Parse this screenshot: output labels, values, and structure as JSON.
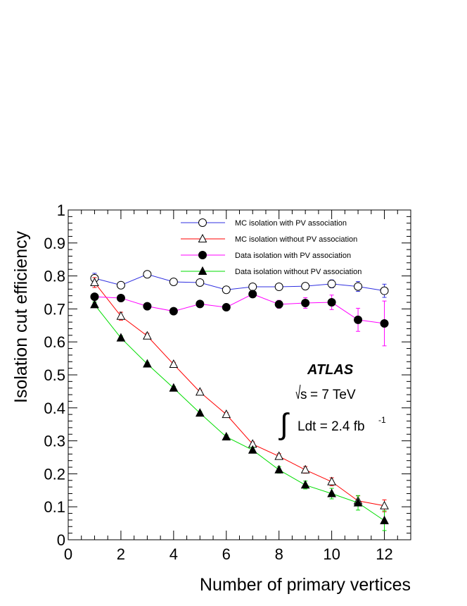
{
  "chart_data": {
    "type": "scatter",
    "xlabel": "Number of primary vertices",
    "ylabel": "Isolation cut efficiency",
    "xlim": [
      0,
      13
    ],
    "ylim": [
      0,
      1
    ],
    "xticks": [
      "0",
      "2",
      "4",
      "6",
      "8",
      "10",
      "12"
    ],
    "yticks": [
      "0",
      "0.1",
      "0.2",
      "0.3",
      "0.4",
      "0.5",
      "0.6",
      "0.7",
      "0.8",
      "0.9",
      "1"
    ],
    "legend_position": "top-right",
    "x": [
      1,
      2,
      3,
      4,
      5,
      6,
      7,
      8,
      9,
      10,
      11,
      12
    ],
    "series": [
      {
        "name": "MC isolation with PV association",
        "color": "#3030e0",
        "marker": "open-circle",
        "values": [
          0.793,
          0.772,
          0.805,
          0.782,
          0.78,
          0.758,
          0.767,
          0.767,
          0.769,
          0.776,
          0.768,
          0.755
        ],
        "errors": [
          0.015,
          0.01,
          0.006,
          0.005,
          0.005,
          0.006,
          0.007,
          0.008,
          0.01,
          0.012,
          0.015,
          0.02
        ]
      },
      {
        "name": "MC isolation without PV association",
        "color": "#ff0000",
        "marker": "open-triangle",
        "values": [
          0.78,
          0.678,
          0.618,
          0.532,
          0.448,
          0.38,
          0.29,
          0.253,
          0.212,
          0.176,
          0.118,
          0.103
        ],
        "errors": [
          0.015,
          0.012,
          0.008,
          0.006,
          0.006,
          0.006,
          0.007,
          0.008,
          0.01,
          0.012,
          0.015,
          0.018
        ]
      },
      {
        "name": "Data isolation with PV association",
        "color": "#ff00ff",
        "marker": "filled-circle",
        "values": [
          0.737,
          0.733,
          0.708,
          0.693,
          0.715,
          0.705,
          0.745,
          0.714,
          0.718,
          0.72,
          0.667,
          0.656
        ],
        "errors": [
          0.008,
          0.006,
          0.005,
          0.005,
          0.005,
          0.006,
          0.008,
          0.012,
          0.016,
          0.022,
          0.035,
          0.068
        ]
      },
      {
        "name": "Data isolation without PV association",
        "color": "#00dd00",
        "marker": "filled-triangle",
        "values": [
          0.713,
          0.612,
          0.533,
          0.46,
          0.384,
          0.312,
          0.272,
          0.212,
          0.166,
          0.14,
          0.112,
          0.058
        ],
        "errors": [
          0.008,
          0.006,
          0.005,
          0.005,
          0.005,
          0.006,
          0.008,
          0.01,
          0.012,
          0.016,
          0.022,
          0.03
        ]
      }
    ],
    "annotations": {
      "experiment": "ATLAS",
      "energy_sqrt": "s",
      "energy_value": "= 7 TeV",
      "lumi_integral": "∫",
      "lumi_text": "Ldt = 2.4 fb",
      "lumi_exponent": "-1"
    }
  }
}
